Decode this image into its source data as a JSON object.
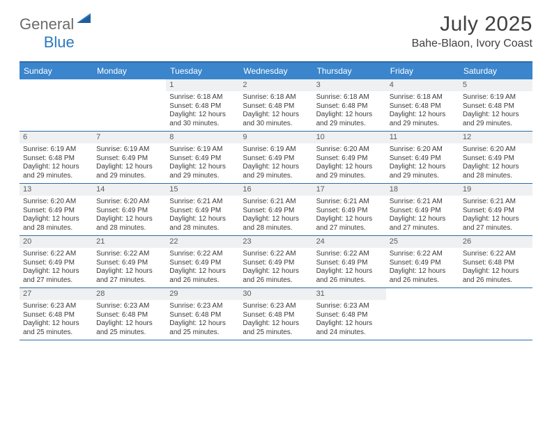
{
  "brand": {
    "word1": "General",
    "word2": "Blue"
  },
  "title": "July 2025",
  "location": "Bahe-Blaon, Ivory Coast",
  "colors": {
    "header_bg": "#3a85cc",
    "header_border": "#2d6aa3",
    "daynum_bg": "#eef0f1",
    "text": "#3a3a3a",
    "brand_gray": "#6b6b6b",
    "brand_blue": "#2a79c0"
  },
  "day_names": [
    "Sunday",
    "Monday",
    "Tuesday",
    "Wednesday",
    "Thursday",
    "Friday",
    "Saturday"
  ],
  "weeks": [
    [
      null,
      null,
      {
        "n": "1",
        "sr": "6:18 AM",
        "ss": "6:48 PM",
        "dl": "12 hours and 30 minutes."
      },
      {
        "n": "2",
        "sr": "6:18 AM",
        "ss": "6:48 PM",
        "dl": "12 hours and 30 minutes."
      },
      {
        "n": "3",
        "sr": "6:18 AM",
        "ss": "6:48 PM",
        "dl": "12 hours and 29 minutes."
      },
      {
        "n": "4",
        "sr": "6:18 AM",
        "ss": "6:48 PM",
        "dl": "12 hours and 29 minutes."
      },
      {
        "n": "5",
        "sr": "6:19 AM",
        "ss": "6:48 PM",
        "dl": "12 hours and 29 minutes."
      }
    ],
    [
      {
        "n": "6",
        "sr": "6:19 AM",
        "ss": "6:48 PM",
        "dl": "12 hours and 29 minutes."
      },
      {
        "n": "7",
        "sr": "6:19 AM",
        "ss": "6:49 PM",
        "dl": "12 hours and 29 minutes."
      },
      {
        "n": "8",
        "sr": "6:19 AM",
        "ss": "6:49 PM",
        "dl": "12 hours and 29 minutes."
      },
      {
        "n": "9",
        "sr": "6:19 AM",
        "ss": "6:49 PM",
        "dl": "12 hours and 29 minutes."
      },
      {
        "n": "10",
        "sr": "6:20 AM",
        "ss": "6:49 PM",
        "dl": "12 hours and 29 minutes."
      },
      {
        "n": "11",
        "sr": "6:20 AM",
        "ss": "6:49 PM",
        "dl": "12 hours and 29 minutes."
      },
      {
        "n": "12",
        "sr": "6:20 AM",
        "ss": "6:49 PM",
        "dl": "12 hours and 28 minutes."
      }
    ],
    [
      {
        "n": "13",
        "sr": "6:20 AM",
        "ss": "6:49 PM",
        "dl": "12 hours and 28 minutes."
      },
      {
        "n": "14",
        "sr": "6:20 AM",
        "ss": "6:49 PM",
        "dl": "12 hours and 28 minutes."
      },
      {
        "n": "15",
        "sr": "6:21 AM",
        "ss": "6:49 PM",
        "dl": "12 hours and 28 minutes."
      },
      {
        "n": "16",
        "sr": "6:21 AM",
        "ss": "6:49 PM",
        "dl": "12 hours and 28 minutes."
      },
      {
        "n": "17",
        "sr": "6:21 AM",
        "ss": "6:49 PM",
        "dl": "12 hours and 27 minutes."
      },
      {
        "n": "18",
        "sr": "6:21 AM",
        "ss": "6:49 PM",
        "dl": "12 hours and 27 minutes."
      },
      {
        "n": "19",
        "sr": "6:21 AM",
        "ss": "6:49 PM",
        "dl": "12 hours and 27 minutes."
      }
    ],
    [
      {
        "n": "20",
        "sr": "6:22 AM",
        "ss": "6:49 PM",
        "dl": "12 hours and 27 minutes."
      },
      {
        "n": "21",
        "sr": "6:22 AM",
        "ss": "6:49 PM",
        "dl": "12 hours and 27 minutes."
      },
      {
        "n": "22",
        "sr": "6:22 AM",
        "ss": "6:49 PM",
        "dl": "12 hours and 26 minutes."
      },
      {
        "n": "23",
        "sr": "6:22 AM",
        "ss": "6:49 PM",
        "dl": "12 hours and 26 minutes."
      },
      {
        "n": "24",
        "sr": "6:22 AM",
        "ss": "6:49 PM",
        "dl": "12 hours and 26 minutes."
      },
      {
        "n": "25",
        "sr": "6:22 AM",
        "ss": "6:49 PM",
        "dl": "12 hours and 26 minutes."
      },
      {
        "n": "26",
        "sr": "6:22 AM",
        "ss": "6:48 PM",
        "dl": "12 hours and 26 minutes."
      }
    ],
    [
      {
        "n": "27",
        "sr": "6:23 AM",
        "ss": "6:48 PM",
        "dl": "12 hours and 25 minutes."
      },
      {
        "n": "28",
        "sr": "6:23 AM",
        "ss": "6:48 PM",
        "dl": "12 hours and 25 minutes."
      },
      {
        "n": "29",
        "sr": "6:23 AM",
        "ss": "6:48 PM",
        "dl": "12 hours and 25 minutes."
      },
      {
        "n": "30",
        "sr": "6:23 AM",
        "ss": "6:48 PM",
        "dl": "12 hours and 25 minutes."
      },
      {
        "n": "31",
        "sr": "6:23 AM",
        "ss": "6:48 PM",
        "dl": "12 hours and 24 minutes."
      },
      null,
      null
    ]
  ],
  "labels": {
    "sunrise": "Sunrise: ",
    "sunset": "Sunset: ",
    "daylight": "Daylight: "
  }
}
